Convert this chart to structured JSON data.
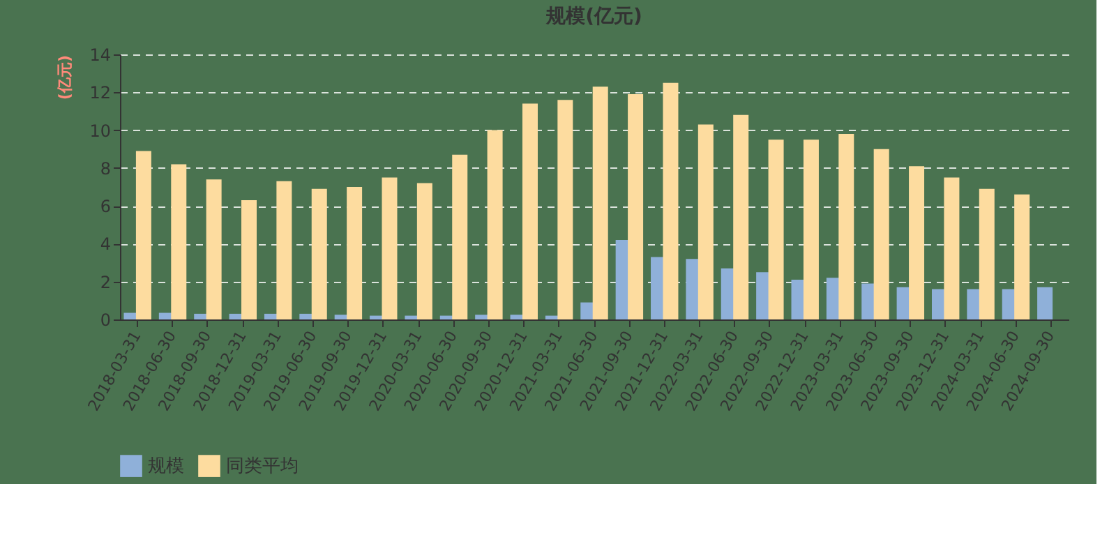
{
  "chart_data": {
    "type": "bar",
    "title": "规模(亿元)",
    "ylabel": "(亿元)",
    "categories": [
      "2018-03-31",
      "2018-06-30",
      "2018-09-30",
      "2018-12-31",
      "2019-03-31",
      "2019-06-30",
      "2019-09-30",
      "2019-12-31",
      "2020-03-31",
      "2020-06-30",
      "2020-09-30",
      "2020-12-31",
      "2021-03-31",
      "2021-06-30",
      "2021-09-30",
      "2021-12-31",
      "2022-03-31",
      "2022-06-30",
      "2022-09-30",
      "2022-12-31",
      "2023-03-31",
      "2023-06-30",
      "2023-09-30",
      "2023-12-31",
      "2024-03-31",
      "2024-06-30",
      "2024-09-30"
    ],
    "series": [
      {
        "name": "规模",
        "color": "#8fb0d9",
        "values": [
          0.35,
          0.35,
          0.3,
          0.3,
          0.3,
          0.3,
          0.25,
          0.2,
          0.2,
          0.2,
          0.25,
          0.25,
          0.2,
          0.9,
          4.2,
          3.3,
          3.2,
          2.7,
          2.5,
          2.1,
          2.2,
          1.9,
          1.7,
          1.6,
          1.6,
          1.6,
          1.7
        ]
      },
      {
        "name": "同类平均",
        "color": "#fddc9f",
        "values": [
          8.9,
          8.2,
          7.4,
          6.3,
          7.3,
          6.9,
          7.0,
          7.5,
          7.2,
          8.7,
          10.0,
          11.4,
          11.6,
          12.3,
          11.9,
          12.5,
          10.3,
          10.8,
          9.5,
          9.5,
          9.8,
          9.0,
          8.1,
          7.5,
          6.9,
          6.6,
          null
        ]
      }
    ],
    "ylim": [
      0,
      14
    ],
    "yticks": [
      0,
      2,
      4,
      6,
      8,
      10,
      12,
      14
    ],
    "grid": "y",
    "legend": "bottom"
  }
}
